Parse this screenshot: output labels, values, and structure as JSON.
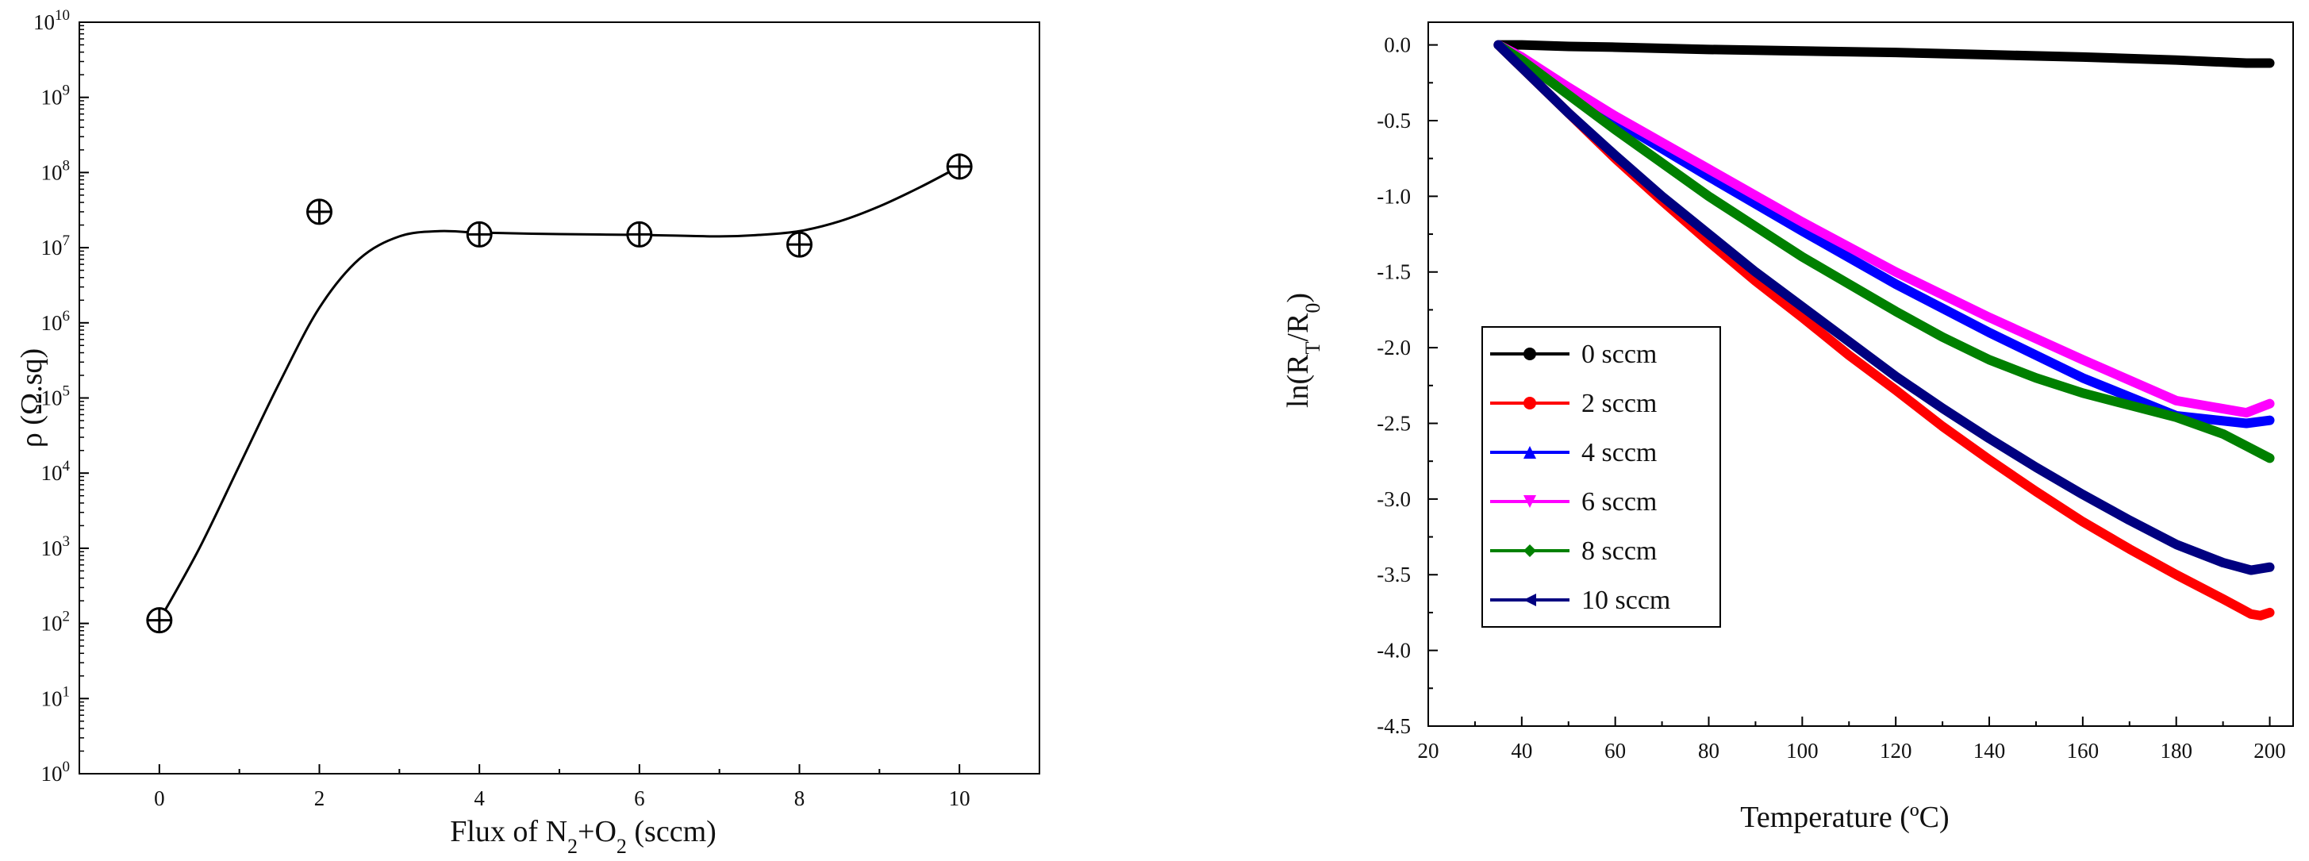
{
  "chart_data": [
    {
      "type": "scatter",
      "title": "",
      "xlabel": "Flux of N₂+O₂ (sccm)",
      "xlabel_parts": [
        "Flux of N",
        "2",
        "+O",
        "2",
        " (sccm)"
      ],
      "ylabel": "ρ (Ω.sq)",
      "yscale": "log",
      "xlim": [
        -1,
        11
      ],
      "ylim_exponent": [
        0,
        10
      ],
      "xticks": [
        0,
        2,
        4,
        6,
        8,
        10
      ],
      "yticks_exponent": [
        0,
        1,
        2,
        3,
        4,
        5,
        6,
        7,
        8,
        9,
        10
      ],
      "ytick_base": "10",
      "marker": "circle-plus",
      "x": [
        0,
        2,
        4,
        6,
        8,
        10
      ],
      "y": [
        110,
        30000000,
        15000000,
        15000000,
        11000000,
        120000000
      ],
      "fit_curve": {
        "x": [
          0,
          0.5,
          1,
          1.5,
          2,
          2.5,
          3,
          3.5,
          4,
          5,
          6,
          7,
          7.5,
          8,
          8.5,
          9,
          9.5,
          10
        ],
        "log10_y": [
          2.04,
          3.0,
          4.1,
          5.2,
          6.2,
          6.85,
          7.15,
          7.22,
          7.2,
          7.18,
          7.17,
          7.15,
          7.17,
          7.22,
          7.35,
          7.55,
          7.8,
          8.08
        ]
      }
    },
    {
      "type": "line",
      "title": "",
      "xlabel": "Temperature (ºC)",
      "ylabel": "ln(Rₜ/R₀)",
      "ylabel_parts": [
        "ln(R",
        "T",
        "/R",
        "0",
        ")"
      ],
      "xlim": [
        20,
        205
      ],
      "ylim": [
        -4.5,
        0.15
      ],
      "xticks": [
        20,
        40,
        60,
        80,
        100,
        120,
        140,
        160,
        180,
        200
      ],
      "yticks": [
        0.0,
        -0.5,
        -1.0,
        -1.5,
        -2.0,
        -2.5,
        -3.0,
        -3.5,
        -4.0,
        -4.5
      ],
      "ytick_labels": [
        "0.0",
        "-0.5",
        "-1.0",
        "-1.5",
        "-2.0",
        "-2.5",
        "-3.0",
        "-3.5",
        "-4.0",
        "-4.5"
      ],
      "legend_position": "lower-left",
      "series": [
        {
          "name": "0 sccm",
          "color": "#000000",
          "marker": "circle",
          "x": [
            35,
            40,
            50,
            60,
            80,
            100,
            120,
            140,
            160,
            180,
            195,
            200
          ],
          "y": [
            0.0,
            0.0,
            -0.01,
            -0.015,
            -0.03,
            -0.04,
            -0.05,
            -0.065,
            -0.08,
            -0.1,
            -0.12,
            -0.12
          ]
        },
        {
          "name": "2 sccm",
          "color": "#ff0000",
          "marker": "circle",
          "x": [
            35,
            40,
            50,
            60,
            70,
            80,
            90,
            100,
            110,
            120,
            130,
            140,
            150,
            160,
            170,
            180,
            190,
            196,
            198,
            200
          ],
          "y": [
            0.0,
            -0.15,
            -0.45,
            -0.75,
            -1.03,
            -1.3,
            -1.56,
            -1.8,
            -2.05,
            -2.28,
            -2.52,
            -2.74,
            -2.95,
            -3.15,
            -3.33,
            -3.5,
            -3.66,
            -3.76,
            -3.77,
            -3.75
          ]
        },
        {
          "name": "4 sccm",
          "color": "#0000ff",
          "marker": "triangle-up",
          "x": [
            35,
            40,
            50,
            60,
            80,
            100,
            120,
            140,
            160,
            180,
            195,
            200
          ],
          "y": [
            0.0,
            -0.1,
            -0.3,
            -0.5,
            -0.87,
            -1.23,
            -1.58,
            -1.9,
            -2.2,
            -2.45,
            -2.5,
            -2.48
          ]
        },
        {
          "name": "6 sccm",
          "color": "#ff00ff",
          "marker": "triangle-down",
          "x": [
            35,
            40,
            50,
            60,
            80,
            100,
            120,
            140,
            160,
            180,
            195,
            200
          ],
          "y": [
            0.0,
            -0.08,
            -0.28,
            -0.47,
            -0.82,
            -1.17,
            -1.5,
            -1.8,
            -2.08,
            -2.35,
            -2.43,
            -2.37
          ]
        },
        {
          "name": "8 sccm",
          "color": "#008000",
          "marker": "diamond",
          "x": [
            35,
            40,
            50,
            60,
            70,
            80,
            90,
            100,
            110,
            120,
            130,
            140,
            150,
            160,
            170,
            180,
            190,
            195,
            200
          ],
          "y": [
            0.0,
            -0.1,
            -0.33,
            -0.56,
            -0.78,
            -1.0,
            -1.2,
            -1.4,
            -1.58,
            -1.76,
            -1.93,
            -2.08,
            -2.2,
            -2.3,
            -2.38,
            -2.46,
            -2.57,
            -2.65,
            -2.73
          ]
        },
        {
          "name": "10 sccm",
          "color": "#000080",
          "marker": "triangle-left",
          "x": [
            35,
            40,
            50,
            60,
            70,
            80,
            90,
            100,
            110,
            120,
            130,
            140,
            150,
            160,
            170,
            180,
            190,
            196,
            198,
            200
          ],
          "y": [
            0.0,
            -0.15,
            -0.45,
            -0.73,
            -1.0,
            -1.25,
            -1.5,
            -1.73,
            -1.96,
            -2.19,
            -2.4,
            -2.6,
            -2.79,
            -2.97,
            -3.14,
            -3.3,
            -3.42,
            -3.47,
            -3.46,
            -3.45
          ]
        }
      ]
    }
  ]
}
